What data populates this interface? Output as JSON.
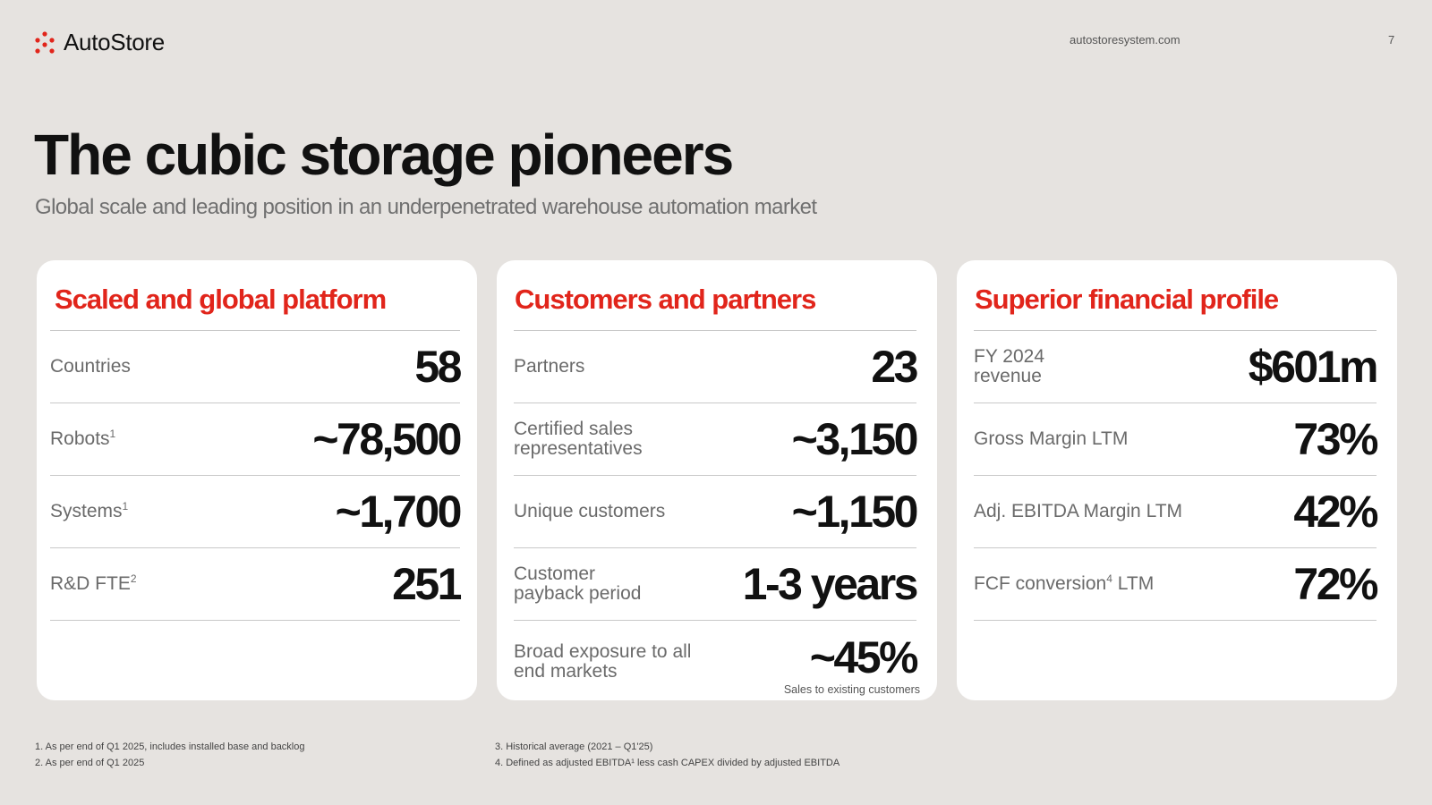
{
  "header": {
    "brand": "AutoStore",
    "url": "autostoresystem.com",
    "page_number": "7"
  },
  "title": "The cubic storage pioneers",
  "subtitle": "Global scale and leading position in an underpenetrated warehouse automation market",
  "colors": {
    "accent": "#e1251b",
    "background": "#e6e3e0",
    "card": "#ffffff"
  },
  "cards": [
    {
      "title": "Scaled and global platform",
      "rows": [
        {
          "label": "Countries",
          "sup": "",
          "value": "58"
        },
        {
          "label": "Robots",
          "sup": "1",
          "value": "~78,500"
        },
        {
          "label": "Systems",
          "sup": "1",
          "value": "~1,700"
        },
        {
          "label": "R&D FTE",
          "sup": "2",
          "value": "251"
        }
      ]
    },
    {
      "title": "Customers and partners",
      "rows": [
        {
          "label": "Partners",
          "value": "23"
        },
        {
          "label": "Certified sales representatives",
          "value": "~3,150"
        },
        {
          "label": "Unique customers",
          "value": "~1,150"
        },
        {
          "label": "Customer payback period",
          "value": "1-3 years"
        },
        {
          "label": "Broad exposure to all end markets",
          "value": "~45%",
          "note": "Sales to existing customers"
        }
      ]
    },
    {
      "title": "Superior financial profile",
      "rows": [
        {
          "label": "FY 2024 revenue",
          "value": "$601m"
        },
        {
          "label": "Gross Margin LTM",
          "value": "73%"
        },
        {
          "label": "Adj. EBITDA Margin LTM",
          "value": "42%"
        },
        {
          "label_pre": "FCF conversion",
          "sup": "4",
          "label_post": " LTM",
          "value": "72%"
        }
      ]
    }
  ],
  "footnotes": {
    "left": [
      "1. As per end of Q1 2025, includes installed base and backlog",
      "2. As per end of Q1 2025"
    ],
    "right": [
      "3. Historical average (2021 – Q1'25)",
      "4. Defined as adjusted EBITDA¹ less cash CAPEX divided by adjusted EBITDA"
    ]
  }
}
